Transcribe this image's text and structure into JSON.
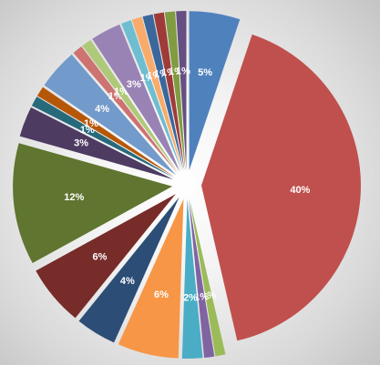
{
  "chart_data": {
    "type": "pie",
    "title": "",
    "legend": "none",
    "start_angle_deg": 0,
    "data_labels_format": "percent",
    "slices": [
      {
        "label": "5%",
        "value": 5,
        "color": "#4f81bd"
      },
      {
        "label": "40%",
        "value": 40,
        "color": "#c0504d"
      },
      {
        "label": "1%",
        "value": 1,
        "color": "#9bbb59"
      },
      {
        "label": "1%",
        "value": 1,
        "color": "#8064a2"
      },
      {
        "label": "2%",
        "value": 2,
        "color": "#4bacc6"
      },
      {
        "label": "6%",
        "value": 6,
        "color": "#f79646"
      },
      {
        "label": "4%",
        "value": 4,
        "color": "#2c4d75"
      },
      {
        "label": "6%",
        "value": 6,
        "color": "#772c2a"
      },
      {
        "label": "12%",
        "value": 12,
        "color": "#5f7530"
      },
      {
        "label": "3%",
        "value": 3,
        "color": "#4d3b62"
      },
      {
        "label": "1%",
        "value": 1,
        "color": "#276a7c"
      },
      {
        "label": "1%",
        "value": 1,
        "color": "#b65708"
      },
      {
        "label": "4%",
        "value": 4,
        "color": "#729aca"
      },
      {
        "label": "1%",
        "value": 1,
        "color": "#cd7371"
      },
      {
        "label": "1%",
        "value": 1,
        "color": "#afc97a"
      },
      {
        "label": "3%",
        "value": 3,
        "color": "#9983b5"
      },
      {
        "label": "1%",
        "value": 1,
        "color": "#6fbdd1"
      },
      {
        "label": "1%",
        "value": 1,
        "color": "#f9ab6b"
      },
      {
        "label": "1%",
        "value": 1,
        "color": "#3a679c"
      },
      {
        "label": "1%",
        "value": 1,
        "color": "#9e3b38"
      },
      {
        "label": "1%",
        "value": 1,
        "color": "#7f9c40"
      },
      {
        "label": "1%",
        "value": 1,
        "color": "#664f82"
      }
    ]
  }
}
